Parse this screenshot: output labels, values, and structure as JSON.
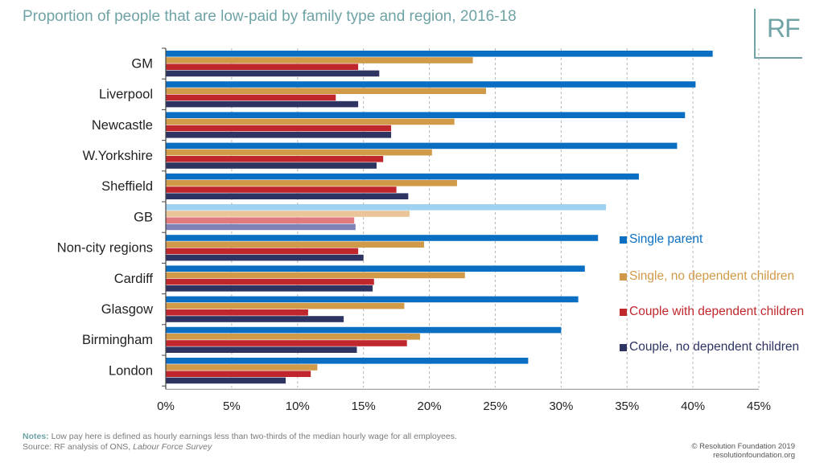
{
  "title": "Proportion of people that are low-paid by family type and region, 2016-18",
  "logo_text": "RF",
  "notes_label": "Notes:",
  "notes_text": "Low pay here is defined as hourly earnings less than two-thirds of the median hourly wage for all employees.",
  "source_prefix": "Source: RF analysis of ONS, ",
  "source_italic": "Labour Force Survey",
  "copyright": "© Resolution Foundation 2019",
  "website": "resolutionfoundation.org",
  "colors": {
    "single_parent": "#0a6fc2",
    "single_no_children": "#d19a48",
    "couple_with_children": "#c0272d",
    "couple_no_children": "#2d3462",
    "gb_single_parent": "#9fd2f0",
    "gb_single_no_children": "#eac59a",
    "gb_couple_with_children": "#e07a7e",
    "gb_couple_no_children": "#7e82b6",
    "axis_text": "#222222",
    "title": "#6fa3a5"
  },
  "chart_data": {
    "type": "bar",
    "orientation": "horizontal",
    "title": "Proportion of people that are low-paid by family type and region, 2016-18",
    "xlabel": "",
    "ylabel": "",
    "xlim": [
      0,
      45
    ],
    "x_ticks": [
      "0%",
      "5%",
      "10%",
      "15%",
      "20%",
      "25%",
      "30%",
      "35%",
      "40%",
      "45%"
    ],
    "grid": "vertical dashed",
    "legend_position": "right",
    "highlighted_category": "GB",
    "categories": [
      "GM",
      "Liverpool",
      "Newcastle",
      "W.Yorkshire",
      "Sheffield",
      "GB",
      "Non-city regions",
      "Cardiff",
      "Glasgow",
      "Birmingham",
      "London"
    ],
    "series": [
      {
        "name": "Single parent",
        "values": [
          41.5,
          40.2,
          39.4,
          38.8,
          35.9,
          33.4,
          32.8,
          31.8,
          31.3,
          30.0,
          27.5
        ]
      },
      {
        "name": "Single, no dependent children",
        "values": [
          23.3,
          24.3,
          21.9,
          20.2,
          22.1,
          18.5,
          19.6,
          22.7,
          18.1,
          19.3,
          11.5
        ]
      },
      {
        "name": "Couple with dependent children",
        "values": [
          14.6,
          12.9,
          17.1,
          16.5,
          17.5,
          14.3,
          14.6,
          15.8,
          10.8,
          18.3,
          11.0
        ]
      },
      {
        "name": "Couple, no dependent children",
        "values": [
          16.2,
          14.6,
          17.1,
          16.0,
          18.4,
          14.4,
          15.0,
          15.7,
          13.5,
          14.5,
          9.1
        ]
      }
    ]
  }
}
